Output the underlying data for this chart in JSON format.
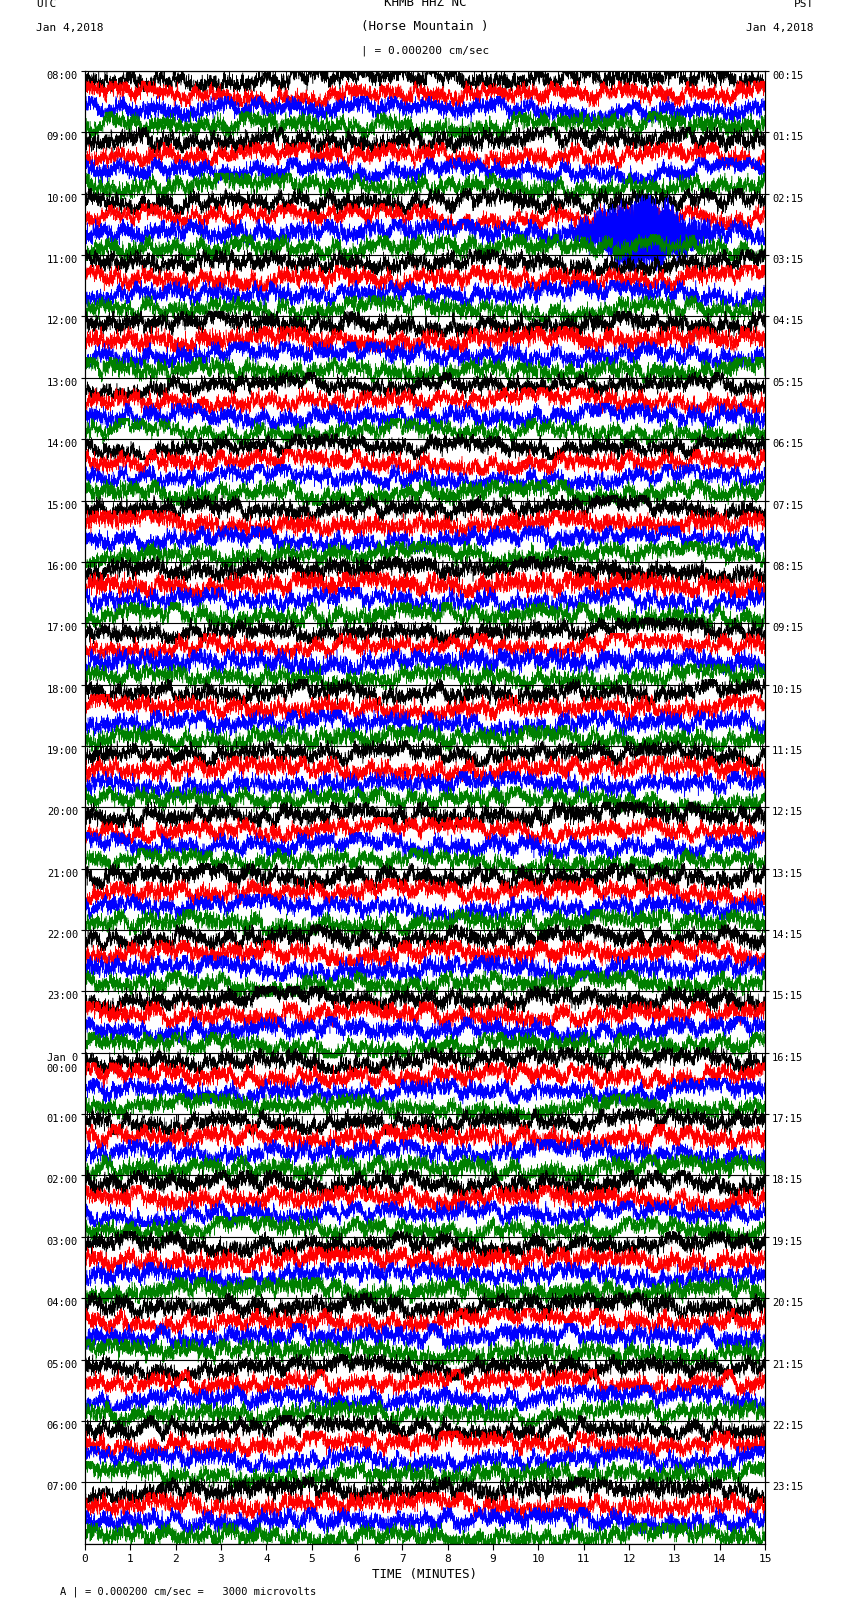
{
  "title_line1": "KHMB HHZ NC",
  "title_line2": "(Horse Mountain )",
  "scale_text": "| = 0.000200 cm/sec",
  "left_label_top": "UTC",
  "left_label_date": "Jan 4,2018",
  "right_label_top": "PST",
  "right_label_date": "Jan 4,2018",
  "xlabel": "TIME (MINUTES)",
  "bottom_note": "A | = 0.000200 cm/sec =   3000 microvolts",
  "x_ticks": [
    0,
    1,
    2,
    3,
    4,
    5,
    6,
    7,
    8,
    9,
    10,
    11,
    12,
    13,
    14,
    15
  ],
  "left_times": [
    "08:00",
    "09:00",
    "10:00",
    "11:00",
    "12:00",
    "13:00",
    "14:00",
    "15:00",
    "16:00",
    "17:00",
    "18:00",
    "19:00",
    "20:00",
    "21:00",
    "22:00",
    "23:00",
    "Jan 0\n00:00",
    "01:00",
    "02:00",
    "03:00",
    "04:00",
    "05:00",
    "06:00",
    "07:00"
  ],
  "right_times": [
    "00:15",
    "01:15",
    "02:15",
    "03:15",
    "04:15",
    "05:15",
    "06:15",
    "07:15",
    "08:15",
    "09:15",
    "10:15",
    "11:15",
    "12:15",
    "13:15",
    "14:15",
    "15:15",
    "16:15",
    "17:15",
    "18:15",
    "19:15",
    "20:15",
    "21:15",
    "22:15",
    "23:15"
  ],
  "n_rows": 24,
  "colors": [
    "black",
    "red",
    "blue",
    "green"
  ],
  "bg_color": "white",
  "plot_area_bg": "white",
  "minutes_per_row": 15,
  "samples_per_minute": 600
}
